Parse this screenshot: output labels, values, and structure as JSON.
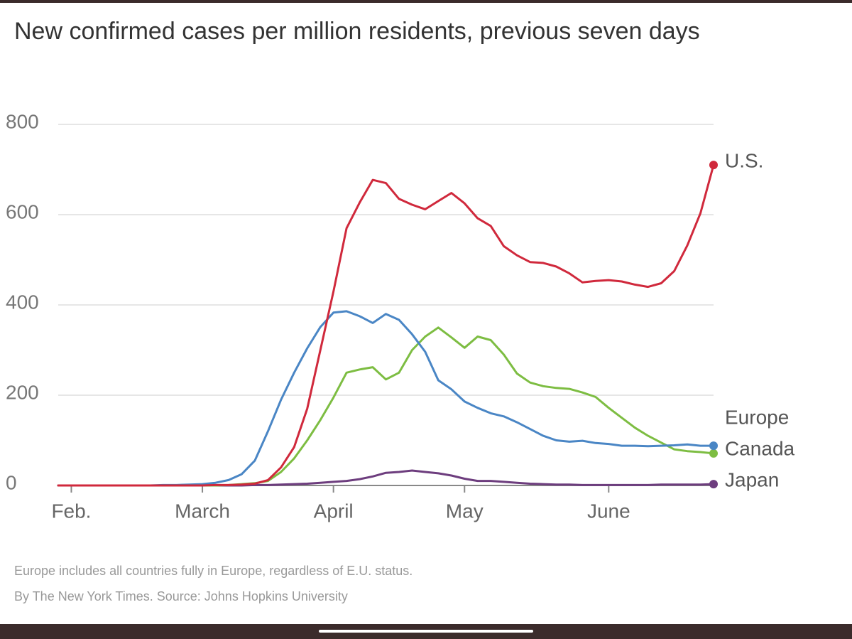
{
  "chart_data": {
    "type": "line",
    "title": "New confirmed cases per million residents, previous seven days",
    "note": "Europe includes all countries fully in Europe, regardless of E.U. status.",
    "source": "By The New York Times. Source: Johns Hopkins University",
    "categories": [
      null,
      "Feb.",
      null,
      null,
      null,
      null,
      null,
      null,
      null,
      null,
      null,
      "March",
      null,
      null,
      null,
      null,
      null,
      null,
      null,
      null,
      null,
      "April",
      null,
      null,
      null,
      null,
      null,
      null,
      null,
      null,
      null,
      "May",
      null,
      null,
      null,
      null,
      null,
      null,
      null,
      null,
      null,
      null,
      "June",
      null,
      null,
      null,
      null,
      null,
      null,
      null,
      null
    ],
    "ylim": [
      0,
      800
    ],
    "yticks": [
      0,
      200,
      400,
      600,
      800
    ],
    "grid": true,
    "series": [
      {
        "name": "U.S.",
        "color": "#d0293c",
        "values": [
          0,
          0,
          0,
          0,
          0,
          0,
          0,
          0,
          0,
          0,
          0,
          0,
          1,
          1,
          2,
          4,
          12,
          40,
          85,
          170,
          300,
          430,
          570,
          627,
          677,
          670,
          635,
          622,
          612,
          630,
          648,
          625,
          592,
          575,
          530,
          510,
          495,
          493,
          485,
          470,
          450,
          453,
          455,
          452,
          445,
          440,
          448,
          475,
          532,
          603,
          710
        ]
      },
      {
        "name": "Europe",
        "color": "#4a86c5",
        "values": [
          0,
          0,
          0,
          0,
          0,
          0,
          0,
          0,
          1,
          1,
          2,
          3,
          6,
          12,
          25,
          55,
          120,
          190,
          250,
          304,
          351,
          383,
          386,
          375,
          360,
          380,
          367,
          335,
          296,
          233,
          213,
          186,
          172,
          160,
          153,
          140,
          125,
          110,
          100,
          97,
          99,
          94,
          92,
          88,
          88,
          87,
          88,
          89,
          91,
          88,
          88
        ]
      },
      {
        "name": "Canada",
        "color": "#7dbd42",
        "values": [
          0,
          0,
          0,
          0,
          0,
          0,
          0,
          0,
          0,
          0,
          0,
          0,
          0,
          1,
          3,
          5,
          10,
          30,
          60,
          100,
          145,
          195,
          250,
          257,
          262,
          235,
          250,
          300,
          330,
          350,
          328,
          305,
          330,
          322,
          290,
          248,
          228,
          220,
          216,
          214,
          206,
          196,
          172,
          150,
          128,
          110,
          95,
          80,
          76,
          74,
          71
        ]
      },
      {
        "name": "Japan",
        "color": "#6d3d7e",
        "values": [
          0,
          0,
          0,
          0,
          0,
          0,
          0,
          0,
          0,
          0,
          0,
          0,
          0,
          0,
          0,
          1,
          1,
          2,
          3,
          4,
          6,
          8,
          10,
          14,
          20,
          28,
          30,
          33,
          30,
          27,
          22,
          15,
          10,
          10,
          8,
          6,
          4,
          3,
          2,
          2,
          1,
          1,
          1,
          1,
          1,
          1,
          2,
          2,
          2,
          2,
          3
        ]
      }
    ]
  }
}
